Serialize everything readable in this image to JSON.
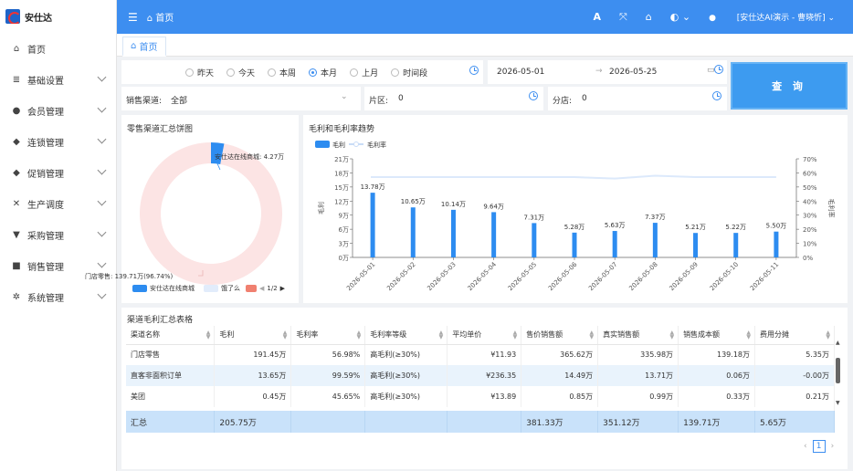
{
  "app": {
    "title": "安仕达",
    "user": "[安仕达AI演示 - 曹晓忻]",
    "home": "首页",
    "tab": "首页"
  },
  "sidebar": {
    "items": [
      {
        "label": "首页",
        "icon": "home-icon",
        "glyph": "⌂"
      },
      {
        "label": "基础设置",
        "icon": "database-icon",
        "glyph": "≣"
      },
      {
        "label": "会员管理",
        "icon": "user-icon",
        "glyph": "●"
      },
      {
        "label": "连锁管理",
        "icon": "tag-icon",
        "glyph": "◆"
      },
      {
        "label": "促销管理",
        "icon": "tag-icon",
        "glyph": "◆"
      },
      {
        "label": "生产调度",
        "icon": "tools-icon",
        "glyph": "✕"
      },
      {
        "label": "采购管理",
        "icon": "basket-icon",
        "glyph": "▼"
      },
      {
        "label": "销售管理",
        "icon": "cart-icon",
        "glyph": "■"
      },
      {
        "label": "系统管理",
        "icon": "gear-icon",
        "glyph": "✲"
      }
    ]
  },
  "filters": {
    "periods": [
      "昨天",
      "今天",
      "本周",
      "本月",
      "上月",
      "时间段"
    ],
    "selected_period": "本月",
    "date_start": "2026-05-01",
    "date_end": "2026-05-25",
    "channel_label": "销售渠道:",
    "channel_value": "全部",
    "area_label": "片区:",
    "area_value": "0",
    "store_label": "分店:",
    "store_value": "0",
    "query_button": "查 询"
  },
  "pie": {
    "title": "零售渠道汇总饼图",
    "label_top": "安仕达在线商城: 4.27万",
    "label_bottom": "门店零售: 139.71万(96.74%)",
    "legend": [
      "安仕达在线商城",
      "饿了么"
    ],
    "page": "1/2",
    "slices": [
      {
        "name": "门店零售",
        "value": 139.71,
        "color": "#fce4e4"
      },
      {
        "name": "安仕达在线商城",
        "value": 4.27,
        "color": "#2d8cf0"
      }
    ]
  },
  "trend": {
    "title": "毛利和毛利率趋势"
  },
  "chart_data": {
    "type": "bar",
    "title": "毛利和毛利率趋势",
    "categories": [
      "2026-05-01",
      "2026-05-02",
      "2026-05-03",
      "2026-05-04",
      "2026-05-05",
      "2026-05-06",
      "2026-05-07",
      "2026-05-08",
      "2026-05-09",
      "2026-05-10",
      "2026-05-11"
    ],
    "series": [
      {
        "name": "毛利",
        "type": "bar",
        "values": [
          13.78,
          10.65,
          10.14,
          9.64,
          7.31,
          5.28,
          5.63,
          7.37,
          5.21,
          5.22,
          5.5
        ],
        "labels": [
          "13.78万",
          "10.65万",
          "10.14万",
          "9.64万",
          "7.31万",
          "5.28万",
          "5.63万",
          "7.37万",
          "5.21万",
          "5.22万",
          "5.50万"
        ],
        "color": "#2d8cf0"
      },
      {
        "name": "毛利率",
        "type": "line",
        "values": [
          57,
          57,
          57,
          57,
          57,
          57,
          56,
          58,
          57,
          57,
          57
        ],
        "color": "#dce9fb"
      }
    ],
    "ylabel": "毛利",
    "y2label": "毛利率",
    "yticks": [
      "0万",
      "3万",
      "6万",
      "9万",
      "12万",
      "15万",
      "18万",
      "21万"
    ],
    "y2ticks": [
      "0%",
      "10%",
      "20%",
      "30%",
      "40%",
      "50%",
      "60%",
      "70%"
    ],
    "ylim": [
      0,
      21
    ],
    "y2lim": [
      0,
      70
    ]
  },
  "table": {
    "title": "渠道毛利汇总表格",
    "headers": [
      "渠道名称",
      "毛利",
      "毛利率",
      "毛利率等级",
      "平均单价",
      "售价销售额",
      "真实销售额",
      "销售成本额",
      "费用分摊"
    ],
    "rows": [
      [
        "门店零售",
        "191.45万",
        "56.98%",
        "高毛利(≥30%)",
        "¥11.93",
        "365.62万",
        "335.98万",
        "139.18万",
        "5.35万"
      ],
      [
        "直客非面积订单",
        "13.65万",
        "99.59%",
        "高毛利(≥30%)",
        "¥236.35",
        "14.49万",
        "13.71万",
        "0.06万",
        "-0.00万"
      ],
      [
        "美团",
        "0.45万",
        "45.65%",
        "高毛利(≥30%)",
        "¥13.89",
        "0.85万",
        "0.99万",
        "0.33万",
        "0.21万"
      ]
    ],
    "summary": [
      "汇总",
      "205.75万",
      "",
      "",
      "",
      "381.33万",
      "351.12万",
      "139.71万",
      "5.65万"
    ],
    "page": "1"
  }
}
